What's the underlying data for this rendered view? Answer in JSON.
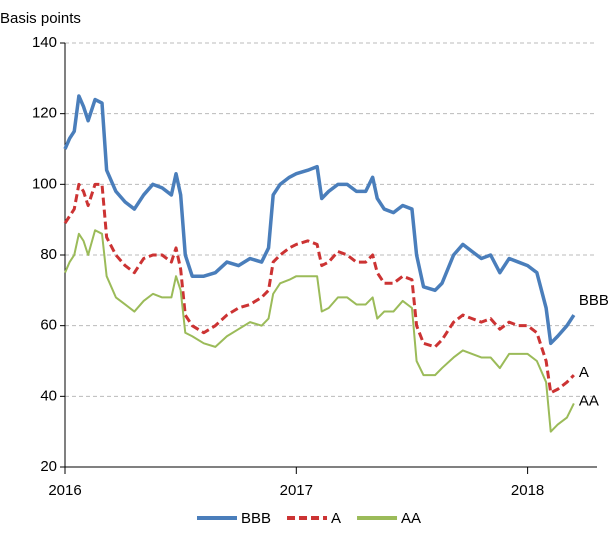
{
  "chart_data": {
    "type": "line",
    "y_label": "Basis points",
    "x": [
      2016.0,
      2016.02,
      2016.04,
      2016.06,
      2016.08,
      2016.1,
      2016.13,
      2016.16,
      2016.18,
      2016.22,
      2016.26,
      2016.3,
      2016.34,
      2016.38,
      2016.42,
      2016.46,
      2016.48,
      2016.5,
      2016.52,
      2016.55,
      2016.6,
      2016.65,
      2016.7,
      2016.75,
      2016.8,
      2016.85,
      2016.88,
      2016.9,
      2016.93,
      2016.97,
      2017.0,
      2017.05,
      2017.09,
      2017.11,
      2017.14,
      2017.18,
      2017.22,
      2017.26,
      2017.3,
      2017.33,
      2017.35,
      2017.38,
      2017.42,
      2017.46,
      2017.5,
      2017.52,
      2017.55,
      2017.6,
      2017.63,
      2017.68,
      2017.72,
      2017.76,
      2017.8,
      2017.84,
      2017.88,
      2017.92,
      2017.96,
      2018.0,
      2018.04,
      2018.08,
      2018.1,
      2018.13,
      2018.17,
      2018.2
    ],
    "series": [
      {
        "name": "BBB",
        "color": "#4a7ebb",
        "dashed": false,
        "values": [
          110,
          113,
          115,
          125,
          122,
          118,
          124,
          123,
          104,
          98,
          95,
          93,
          97,
          100,
          99,
          97,
          103,
          97,
          80,
          74,
          74,
          75,
          78,
          77,
          79,
          78,
          82,
          97,
          100,
          102,
          103,
          104,
          105,
          96,
          98,
          100,
          100,
          98,
          98,
          102,
          96,
          93,
          92,
          94,
          93,
          80,
          71,
          70,
          72,
          80,
          83,
          81,
          79,
          80,
          75,
          79,
          78,
          77,
          75,
          65,
          55,
          57,
          60,
          63
        ]
      },
      {
        "name": "A",
        "color": "#cc3333",
        "dashed": true,
        "values": [
          89,
          91,
          93,
          100,
          98,
          94,
          100,
          100,
          85,
          80,
          77,
          75,
          79,
          80,
          80,
          78,
          82,
          76,
          63,
          60,
          58,
          60,
          63,
          65,
          66,
          68,
          70,
          78,
          80,
          82,
          83,
          84,
          83,
          77,
          78,
          81,
          80,
          78,
          78,
          80,
          75,
          72,
          72,
          74,
          73,
          60,
          55,
          54,
          56,
          61,
          63,
          62,
          61,
          62,
          59,
          61,
          60,
          60,
          58,
          50,
          41,
          42,
          44,
          46
        ]
      },
      {
        "name": "AA",
        "color": "#9bbb59",
        "dashed": false,
        "values": [
          75,
          78,
          80,
          86,
          84,
          80,
          87,
          86,
          74,
          68,
          66,
          64,
          67,
          69,
          68,
          68,
          74,
          70,
          58,
          57,
          55,
          54,
          57,
          59,
          61,
          60,
          62,
          69,
          72,
          73,
          74,
          74,
          74,
          64,
          65,
          68,
          68,
          66,
          66,
          68,
          62,
          64,
          64,
          67,
          65,
          50,
          46,
          46,
          48,
          51,
          53,
          52,
          51,
          51,
          48,
          52,
          52,
          52,
          50,
          44,
          30,
          32,
          34,
          38
        ]
      }
    ],
    "xlim": [
      2016,
      2018.3
    ],
    "xticks": [
      2016,
      2017,
      2018
    ],
    "ylim": [
      20,
      140
    ],
    "yticks": [
      20,
      40,
      60,
      80,
      100,
      120,
      140
    ],
    "grid": true,
    "legend": "bottom"
  }
}
